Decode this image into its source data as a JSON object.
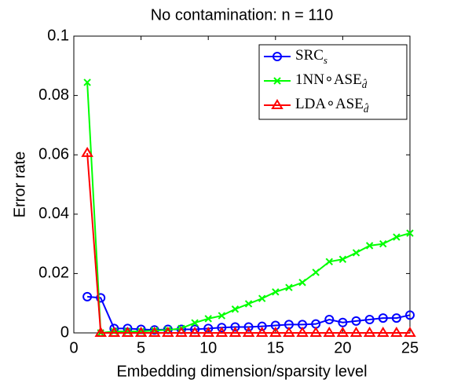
{
  "chart_data": {
    "type": "line",
    "title": "No contamination: n = 110",
    "xlabel": "Embedding dimension/sparsity level",
    "ylabel": "Error rate",
    "x": [
      1,
      2,
      3,
      4,
      5,
      6,
      7,
      8,
      9,
      10,
      11,
      12,
      13,
      14,
      15,
      16,
      17,
      18,
      19,
      20,
      21,
      22,
      23,
      24,
      25
    ],
    "series": [
      {
        "name": "SRC",
        "subscript": "s",
        "color": "#0000ff",
        "marker": "circle",
        "values": [
          0.0122,
          0.0118,
          0.0015,
          0.0015,
          0.0012,
          0.001,
          0.0012,
          0.0012,
          0.0012,
          0.0015,
          0.0018,
          0.002,
          0.002,
          0.0022,
          0.0025,
          0.0028,
          0.0028,
          0.003,
          0.0045,
          0.0035,
          0.004,
          0.0045,
          0.005,
          0.005,
          0.006
        ]
      },
      {
        "name": "1NN∘ASE",
        "subscript": "d̂",
        "color": "#00ff00",
        "marker": "x",
        "values": [
          0.0844,
          0,
          0.0005,
          0.0005,
          0.0005,
          0.0008,
          0.001,
          0.0015,
          0.0034,
          0.0048,
          0.0058,
          0.008,
          0.0098,
          0.0116,
          0.0138,
          0.0153,
          0.017,
          0.0204,
          0.024,
          0.0248,
          0.027,
          0.0294,
          0.03,
          0.0323,
          0.0336
        ]
      },
      {
        "name": "LDA∘ASE",
        "subscript": "d̂",
        "color": "#ff0000",
        "marker": "triangle",
        "values": [
          0.0606,
          0,
          0,
          0,
          0,
          0,
          0,
          0,
          0,
          0,
          0,
          0,
          0,
          0,
          0,
          0,
          0,
          0,
          0,
          0,
          0,
          0,
          0,
          0,
          0
        ]
      }
    ],
    "xlim": [
      0,
      25
    ],
    "xticks": [
      0,
      5,
      10,
      15,
      20,
      25
    ],
    "ylim": [
      0,
      0.1
    ],
    "yticks": [
      0,
      0.02,
      0.04,
      0.06,
      0.08,
      0.1
    ],
    "legend": "upper right"
  }
}
